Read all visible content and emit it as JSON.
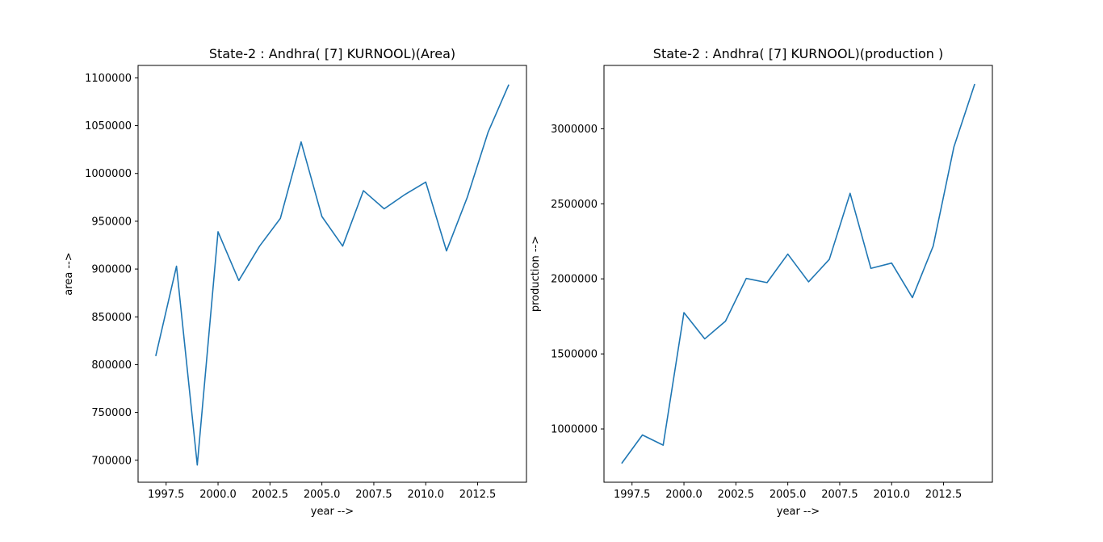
{
  "chart_data": [
    {
      "type": "line",
      "title": "State-2 : Andhra( [7] KURNOOL)(Area)",
      "xlabel": "year -->",
      "ylabel": "area -->",
      "xlim": [
        1996.15,
        2014.85
      ],
      "ylim": [
        677000,
        1113000
      ],
      "xticks": [
        1997.5,
        2000.0,
        2002.5,
        2005.0,
        2007.5,
        2010.0,
        2012.5
      ],
      "xtick_labels": [
        "1997.5",
        "2000.0",
        "2002.5",
        "2005.0",
        "2007.5",
        "2010.0",
        "2012.5"
      ],
      "yticks": [
        700000,
        750000,
        800000,
        850000,
        900000,
        950000,
        1000000,
        1050000,
        1100000
      ],
      "ytick_labels": [
        "700000",
        "750000",
        "800000",
        "850000",
        "900000",
        "950000",
        "1000000",
        "1050000",
        "1100000"
      ],
      "grid": false,
      "color": "#1f77b4",
      "x": [
        1997,
        1998,
        1999,
        2000,
        2001,
        2002,
        2003,
        2004,
        2005,
        2006,
        2007,
        2008,
        2009,
        2010,
        2011,
        2012,
        2013,
        2014
      ],
      "y": [
        809000,
        903000,
        695000,
        939000,
        888000,
        924000,
        953000,
        1033000,
        955000,
        924000,
        982000,
        963000,
        978000,
        991000,
        919000,
        975000,
        1043000,
        1093000
      ]
    },
    {
      "type": "line",
      "title": "State-2 : Andhra( [7] KURNOOL)(production )",
      "xlabel": "year -->",
      "ylabel": "production -->",
      "xlim": [
        1996.15,
        2014.85
      ],
      "ylim": [
        645000,
        3422000
      ],
      "xticks": [
        1997.5,
        2000.0,
        2002.5,
        2005.0,
        2007.5,
        2010.0,
        2012.5
      ],
      "xtick_labels": [
        "1997.5",
        "2000.0",
        "2002.5",
        "2005.0",
        "2007.5",
        "2010.0",
        "2012.5"
      ],
      "yticks": [
        1000000,
        1500000,
        2000000,
        2500000,
        3000000
      ],
      "ytick_labels": [
        "1000000",
        "1500000",
        "2000000",
        "2500000",
        "3000000"
      ],
      "grid": false,
      "color": "#1f77b4",
      "x": [
        1997,
        1998,
        1999,
        2000,
        2001,
        2002,
        2003,
        2004,
        2005,
        2006,
        2007,
        2008,
        2009,
        2010,
        2011,
        2012,
        2013,
        2014
      ],
      "y": [
        770000,
        960000,
        892000,
        1775000,
        1600000,
        1718000,
        2003000,
        1975000,
        2165000,
        1980000,
        2130000,
        2570000,
        2070000,
        2105000,
        1875000,
        2218000,
        2880000,
        3298000
      ]
    }
  ]
}
